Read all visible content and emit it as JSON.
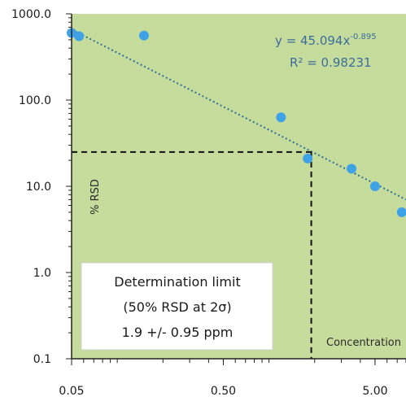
{
  "chart_data": {
    "type": "scatter",
    "x_scale": "log",
    "y_scale": "log",
    "xlabel": "Concentration",
    "ylabel": "% RSD",
    "xlim": [
      0.05,
      8.0
    ],
    "ylim": [
      0.1,
      1000.0
    ],
    "x_ticks": [
      0.05,
      0.5,
      5.0
    ],
    "x_tick_labels": [
      "0.05",
      "0.50",
      "5.00"
    ],
    "y_ticks": [
      0.1,
      1.0,
      10.0,
      100.0,
      1000.0
    ],
    "y_tick_labels": [
      "0.1",
      "1.0",
      "10.0",
      "100.0",
      "1000.0"
    ],
    "grid": false,
    "series": [
      {
        "x": [
          0.05,
          0.056,
          0.15,
          1.2,
          1.8,
          3.5,
          5.0,
          7.5
        ],
        "y": [
          600,
          550,
          560,
          63,
          21,
          16,
          10,
          5
        ],
        "color": "#3fa2e6"
      }
    ],
    "trendline": {
      "type": "power",
      "a": 45.094,
      "b": -0.895,
      "style": "dotted",
      "color": "#2f6f98"
    },
    "equation_text": {
      "base": "y = 45.094x",
      "exponent": "-0.895",
      "r_squared": "R² = 0.98231"
    },
    "determination_limit": {
      "x": 1.9,
      "y": 25,
      "style": "dashed",
      "color": "#111111"
    },
    "annotation_box": {
      "lines": [
        "Determination limit",
        "(50% RSD at 2σ)",
        "1.9 +/- 0.95 ppm"
      ]
    },
    "plot_background": "#c6dc9c"
  }
}
